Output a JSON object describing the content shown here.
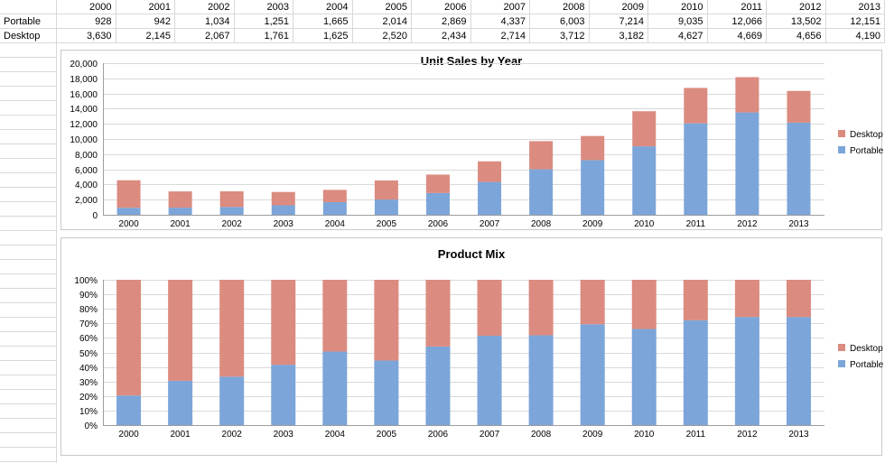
{
  "table": {
    "corner": "",
    "years": [
      "2000",
      "2001",
      "2002",
      "2003",
      "2004",
      "2005",
      "2006",
      "2007",
      "2008",
      "2009",
      "2010",
      "2011",
      "2012",
      "2013"
    ],
    "rows": [
      {
        "label": "Portable",
        "values": [
          "928",
          "942",
          "1,034",
          "1,251",
          "1,665",
          "2,014",
          "2,869",
          "4,337",
          "6,003",
          "7,214",
          "9,035",
          "12,066",
          "13,502",
          "12,151"
        ]
      },
      {
        "label": "Desktop",
        "values": [
          "3,630",
          "2,145",
          "2,067",
          "1,761",
          "1,625",
          "2,520",
          "2,434",
          "2,714",
          "3,712",
          "3,182",
          "4,627",
          "4,669",
          "4,656",
          "4,190"
        ]
      }
    ]
  },
  "colors": {
    "portable_series": "#7CA5D9",
    "desktop_series": "#DB8B80",
    "chart_gridline": "#D9D9D9",
    "axis_line": "#9E9E9E",
    "cell_gridline": "#D8D8D8",
    "chart_border": "#C9C9C9",
    "text": "#000000"
  },
  "chart_data": [
    {
      "type": "bar",
      "stacked": true,
      "normalized": false,
      "title": "Unit Sales by Year",
      "categories": [
        "2000",
        "2001",
        "2002",
        "2003",
        "2004",
        "2005",
        "2006",
        "2007",
        "2008",
        "2009",
        "2010",
        "2011",
        "2012",
        "2013"
      ],
      "series": [
        {
          "name": "Portable",
          "values": [
            928,
            942,
            1034,
            1251,
            1665,
            2014,
            2869,
            4337,
            6003,
            7214,
            9035,
            12066,
            13502,
            12151
          ]
        },
        {
          "name": "Desktop",
          "values": [
            3630,
            2145,
            2067,
            1761,
            1625,
            2520,
            2434,
            2714,
            3712,
            3182,
            4627,
            4669,
            4656,
            4190
          ]
        }
      ],
      "xlabel": "",
      "ylabel": "",
      "ylim": [
        0,
        20000
      ],
      "ystep": 2000,
      "grid": true,
      "legend": [
        "Desktop",
        "Portable"
      ],
      "legend_position": "right"
    },
    {
      "type": "bar",
      "stacked": true,
      "normalized": true,
      "title": "Product Mix",
      "categories": [
        "2000",
        "2001",
        "2002",
        "2003",
        "2004",
        "2005",
        "2006",
        "2007",
        "2008",
        "2009",
        "2010",
        "2011",
        "2012",
        "2013"
      ],
      "series": [
        {
          "name": "Portable",
          "values": [
            928,
            942,
            1034,
            1251,
            1665,
            2014,
            2869,
            4337,
            6003,
            7214,
            9035,
            12066,
            13502,
            12151
          ]
        },
        {
          "name": "Desktop",
          "values": [
            3630,
            2145,
            2067,
            1761,
            1625,
            2520,
            2434,
            2714,
            3712,
            3182,
            4627,
            4669,
            4656,
            4190
          ]
        }
      ],
      "xlabel": "",
      "ylabel": "",
      "ylim": [
        0,
        100
      ],
      "ystep": 10,
      "grid": true,
      "legend": [
        "Desktop",
        "Portable"
      ],
      "legend_position": "right"
    }
  ]
}
